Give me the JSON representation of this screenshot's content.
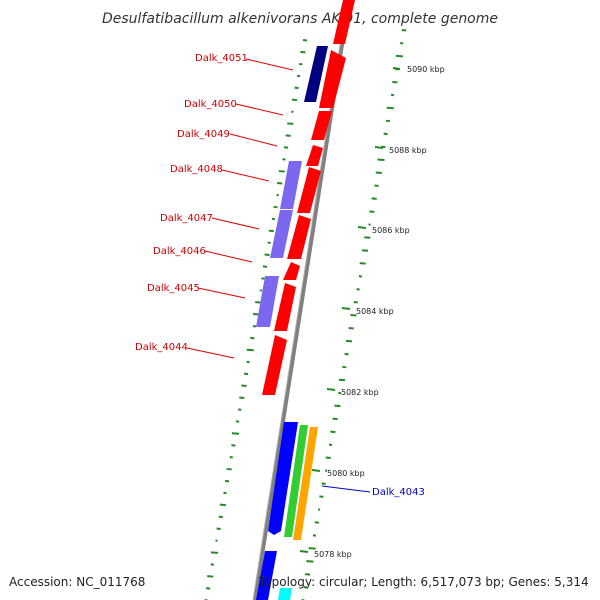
{
  "title": "Desulfatibacillum alkenivorans AK-01, complete genome",
  "footer": {
    "accession": "Accession: NC_011768",
    "summary": "Topology: circular; Length: 6,517,073 bp; Genes: 5,314"
  },
  "colors": {
    "forward_gene": "#ff0000",
    "reverse_gene": "#7b68ee",
    "reverse_gene_dark": "#000080",
    "blue_gene": "#0000ff",
    "green_gene": "#32cd32",
    "orange_gene": "#ffa500",
    "cyan_gene": "#00ffff",
    "backbone": "#808080",
    "gc_marks": "#228b22",
    "label_red": "#cc0000",
    "label_blue": "#0000cc"
  },
  "gene_labels": [
    {
      "name": "Dalk_4051",
      "color": "label_red"
    },
    {
      "name": "Dalk_4050",
      "color": "label_red"
    },
    {
      "name": "Dalk_4049",
      "color": "label_red"
    },
    {
      "name": "Dalk_4048",
      "color": "label_red"
    },
    {
      "name": "Dalk_4047",
      "color": "label_red"
    },
    {
      "name": "Dalk_4046",
      "color": "label_red"
    },
    {
      "name": "Dalk_4045",
      "color": "label_red"
    },
    {
      "name": "Dalk_4044",
      "color": "label_red"
    },
    {
      "name": "Dalk_4043",
      "color": "label_blue"
    }
  ],
  "kbp_ticks": [
    "5090 kbp",
    "5088 kbp",
    "5086 kbp",
    "5084 kbp",
    "5082 kbp",
    "5080 kbp",
    "5078 kbp"
  ]
}
